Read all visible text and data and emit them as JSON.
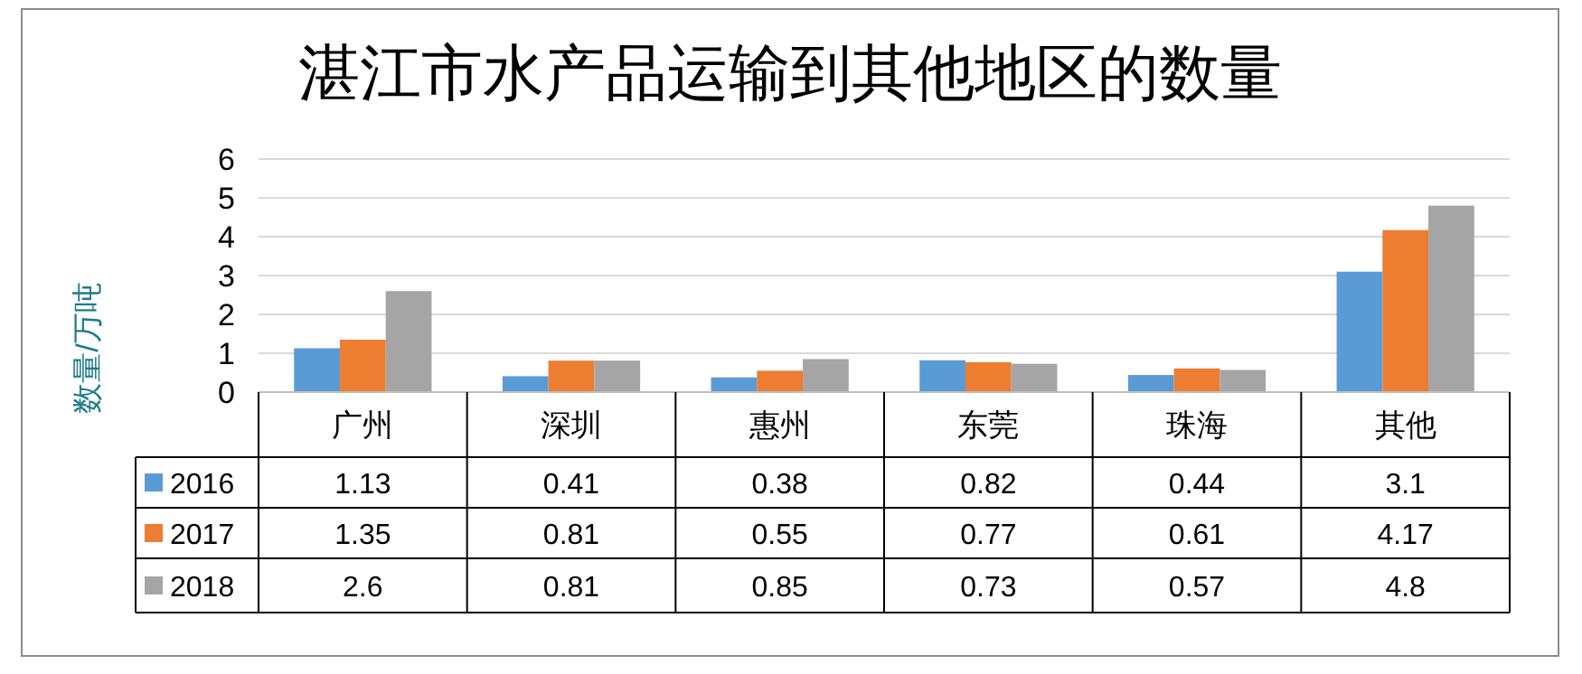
{
  "chart_data": {
    "type": "bar",
    "title": "湛江市水产品运输到其他地区的数量",
    "ylabel": "数量/万吨",
    "categories": [
      "广州",
      "深圳",
      "惠州",
      "东莞",
      "珠海",
      "其他"
    ],
    "series": [
      {
        "name": "2016",
        "color": "#5b9bd5",
        "values": [
          1.13,
          0.41,
          0.38,
          0.82,
          0.44,
          3.1
        ]
      },
      {
        "name": "2017",
        "color": "#ed7d31",
        "values": [
          1.35,
          0.81,
          0.55,
          0.77,
          0.61,
          4.17
        ]
      },
      {
        "name": "2018",
        "color": "#a5a5a5",
        "values": [
          2.6,
          0.81,
          0.85,
          0.73,
          0.57,
          4.8
        ]
      }
    ],
    "ylim": [
      0,
      6
    ],
    "yticks": [
      0,
      1,
      2,
      3,
      4,
      5,
      6
    ],
    "grid": "y",
    "legend": "bottom",
    "data_labels": true
  }
}
